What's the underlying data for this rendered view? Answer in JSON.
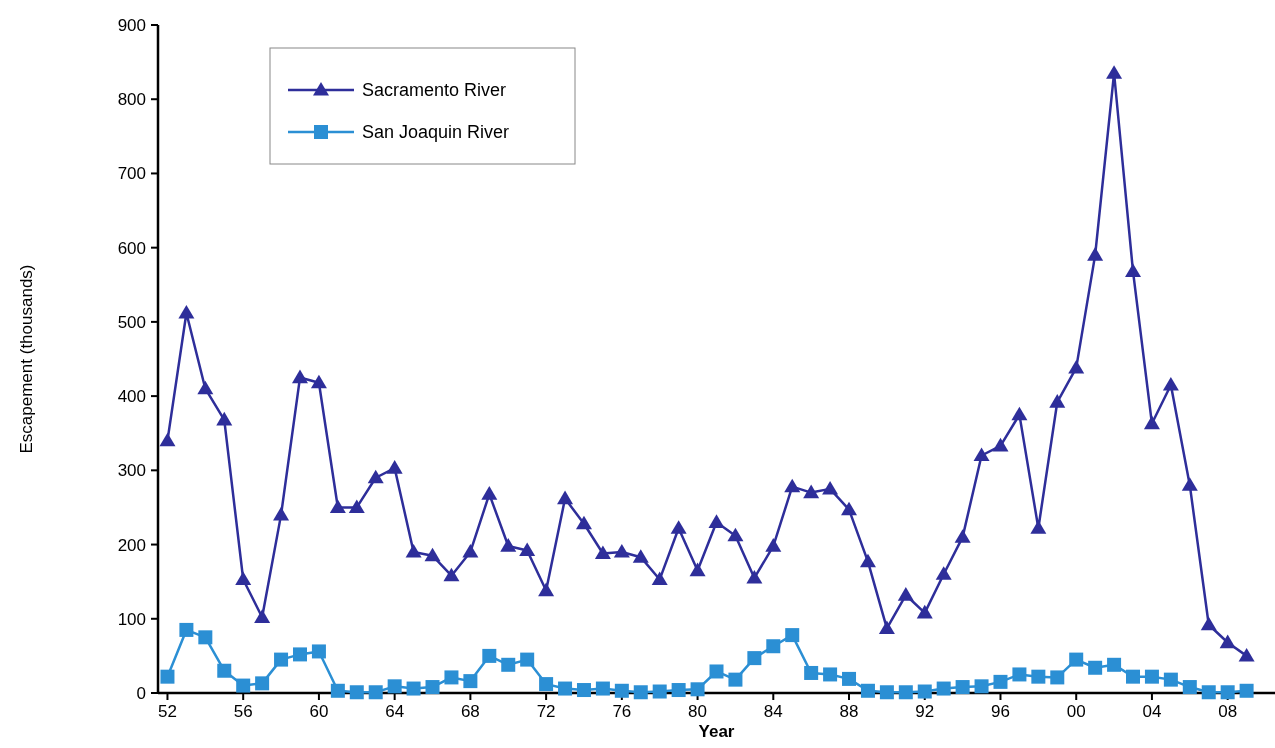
{
  "chart_data": {
    "type": "line",
    "xlabel": "Year",
    "ylabel": "Escapement (thousands)",
    "x": [
      1952,
      1953,
      1954,
      1955,
      1956,
      1957,
      1958,
      1959,
      1960,
      1961,
      1962,
      1963,
      1964,
      1965,
      1966,
      1967,
      1968,
      1969,
      1970,
      1971,
      1972,
      1973,
      1974,
      1975,
      1976,
      1977,
      1978,
      1979,
      1980,
      1981,
      1982,
      1983,
      1984,
      1985,
      1986,
      1987,
      1988,
      1989,
      1990,
      1991,
      1992,
      1993,
      1994,
      1995,
      1996,
      1997,
      1998,
      1999,
      2000,
      2001,
      2002,
      2003,
      2004,
      2005,
      2006,
      2007,
      2008,
      2009
    ],
    "series": [
      {
        "name": "Sacramento River",
        "color": "#2e2e9a",
        "marker": "triangle",
        "values": [
          340,
          512,
          410,
          368,
          153,
          102,
          240,
          425,
          418,
          250,
          250,
          290,
          303,
          190,
          185,
          158,
          190,
          268,
          198,
          192,
          138,
          262,
          228,
          188,
          190,
          183,
          153,
          222,
          165,
          230,
          212,
          155,
          198,
          278,
          270,
          275,
          247,
          177,
          87,
          132,
          108,
          160,
          210,
          320,
          333,
          375,
          222,
          392,
          438,
          590,
          835,
          568,
          363,
          415,
          280,
          92,
          68,
          50
        ]
      },
      {
        "name": "San Joaquin River",
        "color": "#2b8fd4",
        "marker": "square",
        "values": [
          22,
          85,
          75,
          30,
          10,
          13,
          45,
          52,
          56,
          3,
          1,
          1,
          9,
          6,
          8,
          21,
          16,
          50,
          38,
          45,
          12,
          6,
          4,
          6,
          3,
          1,
          2,
          4,
          5,
          29,
          18,
          47,
          63,
          78,
          27,
          25,
          19,
          3,
          1,
          1,
          2,
          6,
          8,
          9,
          15,
          25,
          22,
          21,
          45,
          34,
          38,
          22,
          22,
          18,
          8,
          1,
          1,
          3
        ]
      }
    ],
    "xlim": [
      1951.5,
      2010.5
    ],
    "xticks": [
      {
        "value": 1952,
        "label": "52"
      },
      {
        "value": 1956,
        "label": "56"
      },
      {
        "value": 1960,
        "label": "60"
      },
      {
        "value": 1964,
        "label": "64"
      },
      {
        "value": 1968,
        "label": "68"
      },
      {
        "value": 1972,
        "label": "72"
      },
      {
        "value": 1976,
        "label": "76"
      },
      {
        "value": 1980,
        "label": "80"
      },
      {
        "value": 1984,
        "label": "84"
      },
      {
        "value": 1988,
        "label": "88"
      },
      {
        "value": 1992,
        "label": "92"
      },
      {
        "value": 1996,
        "label": "96"
      },
      {
        "value": 2000,
        "label": "00"
      },
      {
        "value": 2004,
        "label": "04"
      },
      {
        "value": 2008,
        "label": "08"
      }
    ],
    "ylim": [
      0,
      900
    ],
    "yticks": [
      0,
      100,
      200,
      300,
      400,
      500,
      600,
      700,
      800,
      900
    ],
    "grid": false,
    "legend": "top left",
    "line_style": "solid"
  }
}
